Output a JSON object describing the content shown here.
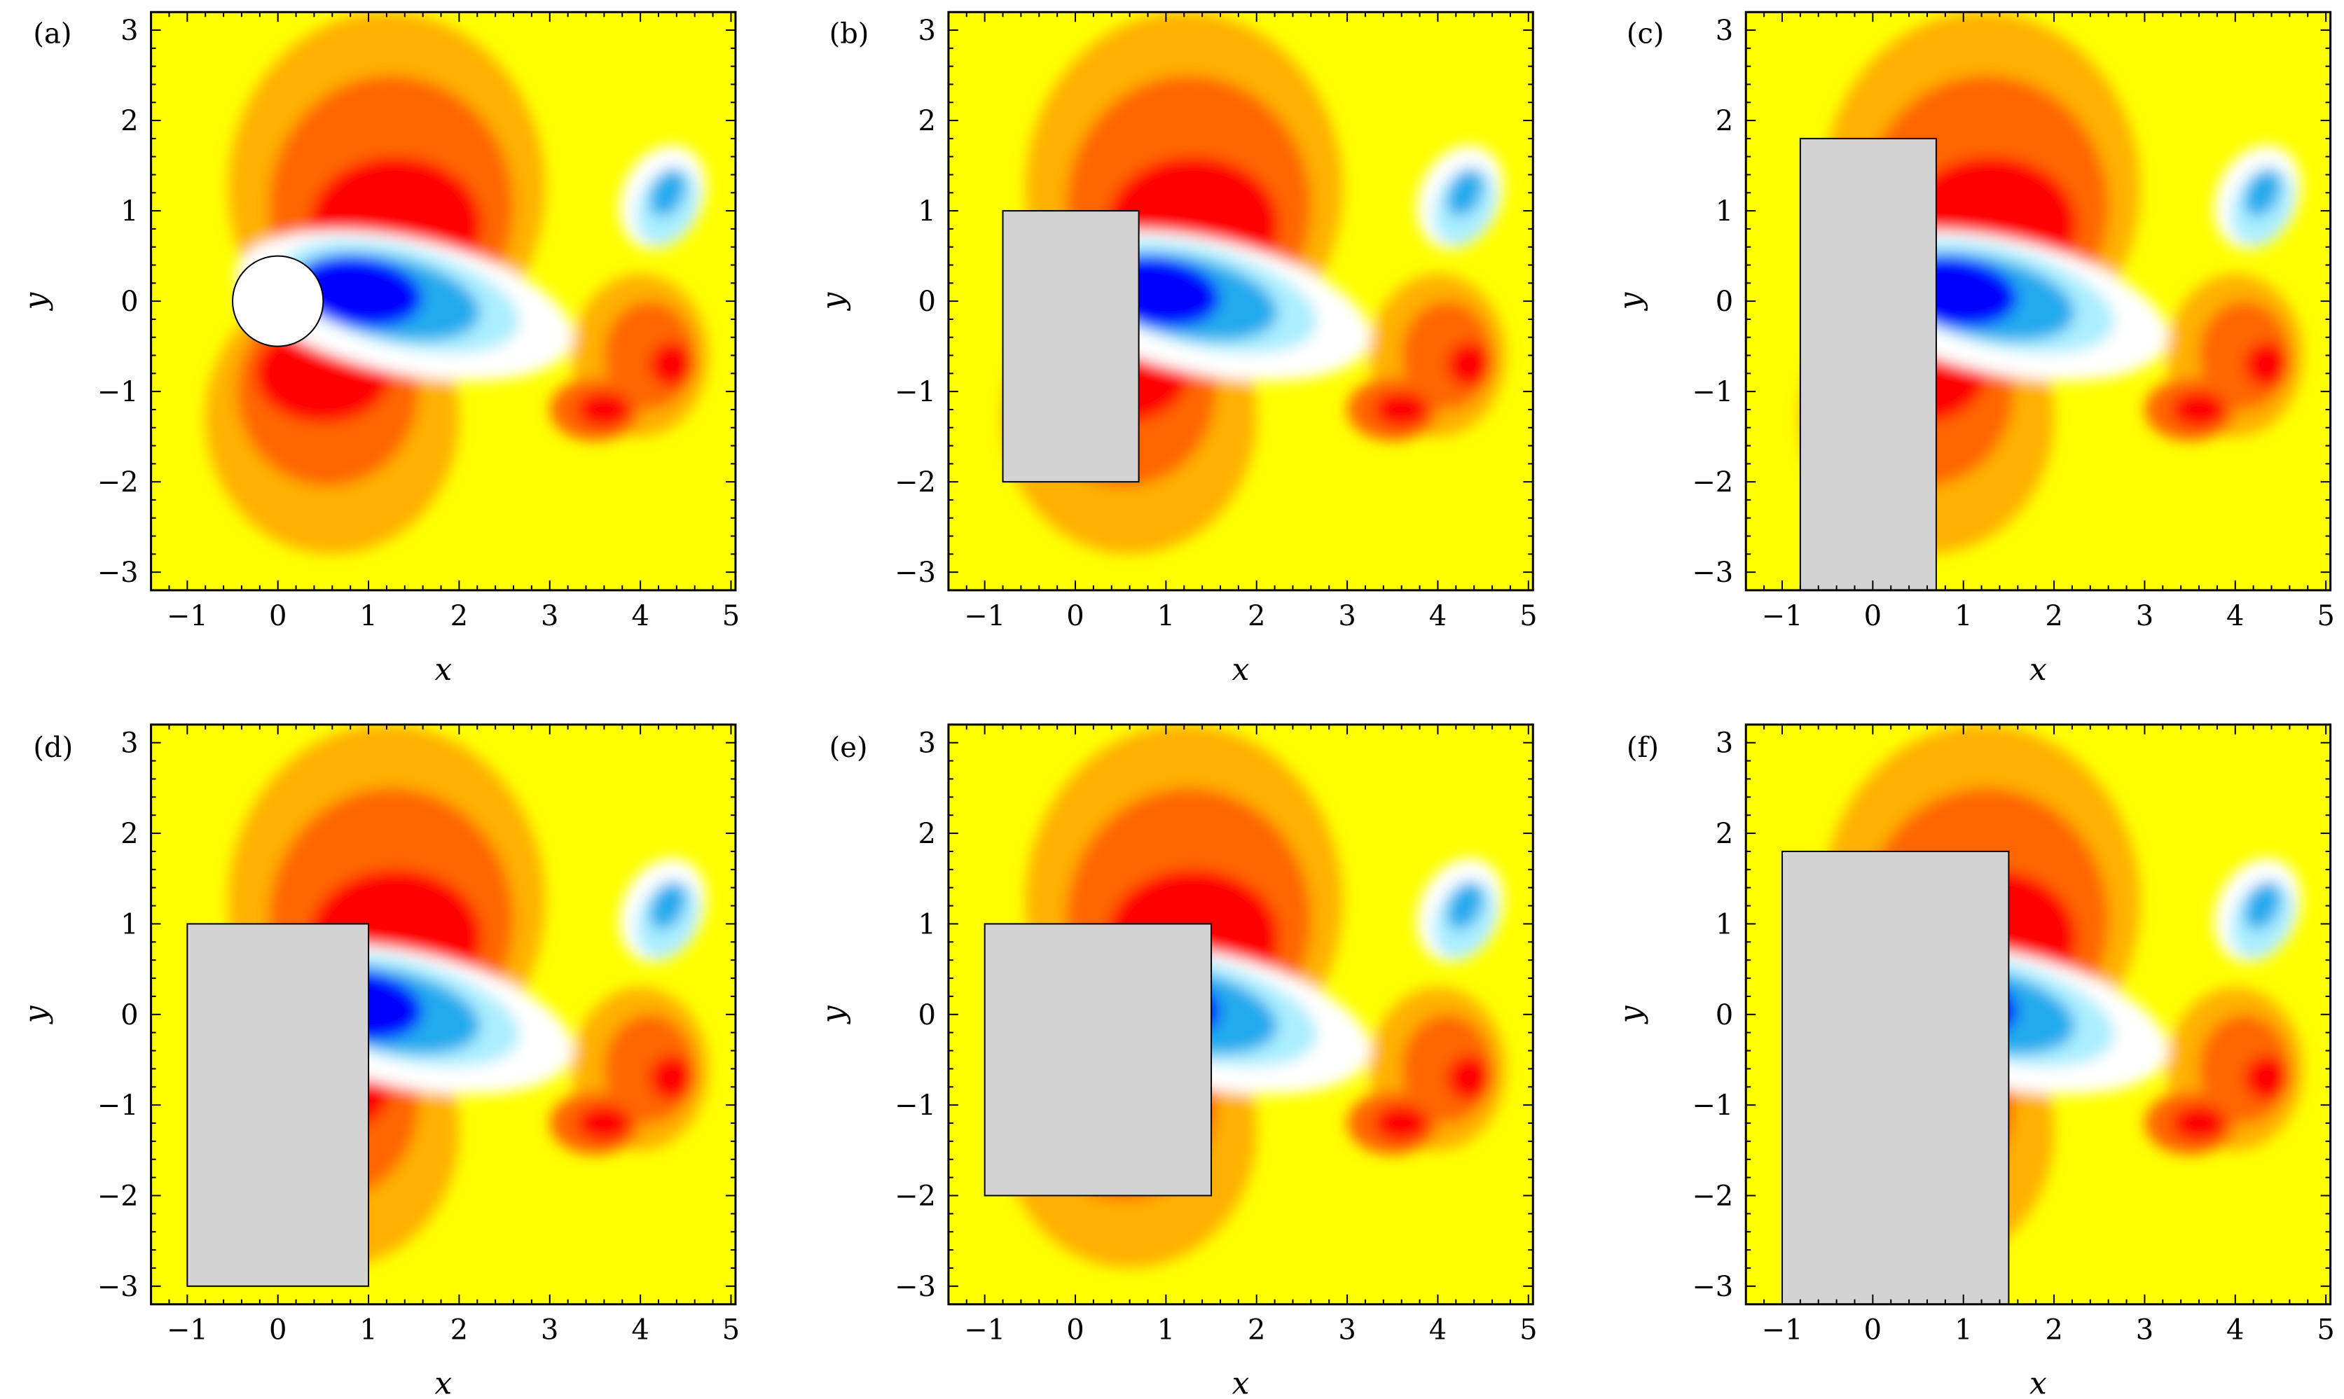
{
  "colors": {
    "background_field": "#ffff00",
    "positive_strong": "#ff0000",
    "positive_mid": "#ff6600",
    "positive_weak": "#ffb000",
    "negative_strong": "#0000ff",
    "negative_mid": "#22aaee",
    "negative_weak": "#aaeeff",
    "obstacle_fill": "#d3d3d3",
    "cylinder_fill": "#ffffff"
  },
  "chart_data": [
    {
      "type": "heatmap",
      "panel_label": "(a)",
      "xlabel": "x",
      "ylabel": "y",
      "xlim": [
        -1.4,
        5.05
      ],
      "ylim": [
        -3.2,
        3.2
      ],
      "xticks": [
        -1,
        0,
        1,
        2,
        3,
        4,
        5
      ],
      "xtick_labels": [
        "−1",
        "0",
        "1",
        "2",
        "3",
        "4",
        "5"
      ],
      "yticks": [
        -3,
        -2,
        -1,
        0,
        1,
        2,
        3
      ],
      "ytick_labels": [
        "−3",
        "−2",
        "−1",
        "0",
        "1",
        "2",
        "3"
      ],
      "obstacle": {
        "shape": "circle",
        "center": [
          0,
          0
        ],
        "radius": 0.5
      }
    },
    {
      "type": "heatmap",
      "panel_label": "(b)",
      "xlabel": "x",
      "ylabel": "y",
      "xlim": [
        -1.4,
        5.05
      ],
      "ylim": [
        -3.2,
        3.2
      ],
      "xticks": [
        -1,
        0,
        1,
        2,
        3,
        4,
        5
      ],
      "xtick_labels": [
        "−1",
        "0",
        "1",
        "2",
        "3",
        "4",
        "5"
      ],
      "yticks": [
        -3,
        -2,
        -1,
        0,
        1,
        2,
        3
      ],
      "ytick_labels": [
        "−3",
        "−2",
        "−1",
        "0",
        "1",
        "2",
        "3"
      ],
      "obstacle": {
        "shape": "rect",
        "x": [
          -0.8,
          0.7
        ],
        "y": [
          -2,
          1
        ]
      }
    },
    {
      "type": "heatmap",
      "panel_label": "(c)",
      "xlabel": "x",
      "ylabel": "y",
      "xlim": [
        -1.4,
        5.05
      ],
      "ylim": [
        -3.2,
        3.2
      ],
      "xticks": [
        -1,
        0,
        1,
        2,
        3,
        4,
        5
      ],
      "xtick_labels": [
        "−1",
        "0",
        "1",
        "2",
        "3",
        "4",
        "5"
      ],
      "yticks": [
        -3,
        -2,
        -1,
        0,
        1,
        2,
        3
      ],
      "ytick_labels": [
        "−3",
        "−2",
        "−1",
        "0",
        "1",
        "2",
        "3"
      ],
      "obstacle": {
        "shape": "rect",
        "x": [
          -0.8,
          0.7
        ],
        "y": [
          -3.2,
          1.8
        ]
      }
    },
    {
      "type": "heatmap",
      "panel_label": "(d)",
      "xlabel": "x",
      "ylabel": "y",
      "xlim": [
        -1.4,
        5.05
      ],
      "ylim": [
        -3.2,
        3.2
      ],
      "xticks": [
        -1,
        0,
        1,
        2,
        3,
        4,
        5
      ],
      "xtick_labels": [
        "−1",
        "0",
        "1",
        "2",
        "3",
        "4",
        "5"
      ],
      "yticks": [
        -3,
        -2,
        -1,
        0,
        1,
        2,
        3
      ],
      "ytick_labels": [
        "−3",
        "−2",
        "−1",
        "0",
        "1",
        "2",
        "3"
      ],
      "obstacle": {
        "shape": "rect",
        "x": [
          -1,
          1
        ],
        "y": [
          -3,
          1
        ]
      }
    },
    {
      "type": "heatmap",
      "panel_label": "(e)",
      "xlabel": "x",
      "ylabel": "y",
      "xlim": [
        -1.4,
        5.05
      ],
      "ylim": [
        -3.2,
        3.2
      ],
      "xticks": [
        -1,
        0,
        1,
        2,
        3,
        4,
        5
      ],
      "xtick_labels": [
        "−1",
        "0",
        "1",
        "2",
        "3",
        "4",
        "5"
      ],
      "yticks": [
        -3,
        -2,
        -1,
        0,
        1,
        2,
        3
      ],
      "ytick_labels": [
        "−3",
        "−2",
        "−1",
        "0",
        "1",
        "2",
        "3"
      ],
      "obstacle": {
        "shape": "rect",
        "x": [
          -1,
          1.5
        ],
        "y": [
          -2,
          1
        ]
      }
    },
    {
      "type": "heatmap",
      "panel_label": "(f)",
      "xlabel": "x",
      "ylabel": "y",
      "xlim": [
        -1.4,
        5.05
      ],
      "ylim": [
        -3.2,
        3.2
      ],
      "xticks": [
        -1,
        0,
        1,
        2,
        3,
        4,
        5
      ],
      "xtick_labels": [
        "−1",
        "0",
        "1",
        "2",
        "3",
        "4",
        "5"
      ],
      "yticks": [
        -3,
        -2,
        -1,
        0,
        1,
        2,
        3
      ],
      "ytick_labels": [
        "−3",
        "−2",
        "−1",
        "0",
        "1",
        "2",
        "3"
      ],
      "obstacle": {
        "shape": "rect",
        "x": [
          -1,
          1.5
        ],
        "y": [
          -3.2,
          1.8
        ]
      }
    }
  ]
}
